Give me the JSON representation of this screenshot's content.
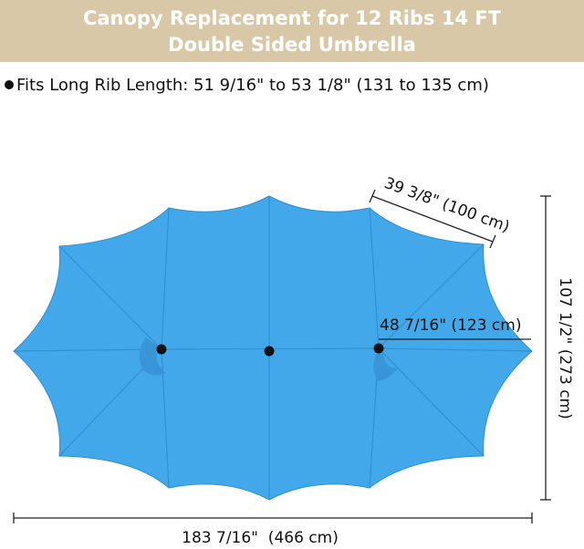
{
  "header": {
    "title_lines": [
      "Canopy Replacement for 12 Ribs 14 FT",
      "Double Sided Umbrella"
    ]
  },
  "spec": {
    "text": "Fits Long Rib Length: 51 9/16\" to 53 1/8\" (131 to 135 cm)"
  },
  "dimensions": {
    "rib_span": "39 3/8\" (100 cm)",
    "half_width": "48 7/16\" (123 cm)",
    "depth": "107 1/2\" (273 cm)",
    "width": "183 7/16\"  (466 cm)"
  }
}
